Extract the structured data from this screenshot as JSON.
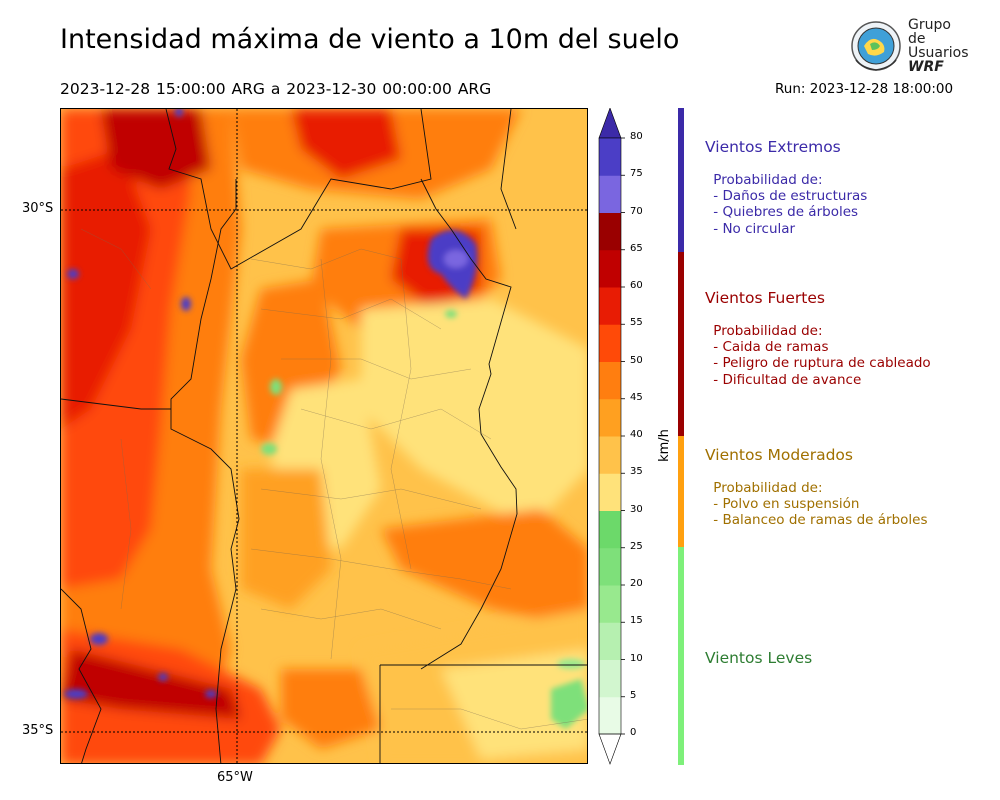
{
  "title": "Intensidad máxima de viento a 10m del suelo",
  "period": "2023-12-28 15:00:00 ARG  a  2023-12-30 00:00:00 ARG",
  "run": "Run: 2023-12-28 18:00:00",
  "logo": {
    "line1": "Grupo de",
    "line2": "Usuarios",
    "line3": "WRF",
    "icon": "globe-seal-icon"
  },
  "map": {
    "lat_labels": [
      "30°S",
      "35°S"
    ],
    "lon_labels": [
      "65°W"
    ]
  },
  "colorbar": {
    "unit": "km/h",
    "ticks": [
      "0",
      "5",
      "10",
      "15",
      "20",
      "25",
      "30",
      "35",
      "40",
      "45",
      "50",
      "55",
      "60",
      "65",
      "70",
      "75",
      "80"
    ],
    "levels": [
      0,
      5,
      10,
      15,
      20,
      25,
      30,
      35,
      40,
      45,
      50,
      55,
      60,
      65,
      70,
      75,
      80
    ],
    "colors": [
      "#e8fbe6",
      "#d2f6cf",
      "#b6f0b0",
      "#98e98e",
      "#7ee07a",
      "#6cd96a",
      "#ffe27a",
      "#ffc24a",
      "#ffa020",
      "#ff7e10",
      "#ff4a08",
      "#e81c04",
      "#c00000",
      "#9a0000",
      "#7a66e0",
      "#4b3ec6",
      "#3c2aa8"
    ]
  },
  "categories": [
    {
      "title": "Vientos Extremos",
      "color": "#3b2aa8",
      "lines": [
        " Probabilidad de:",
        " - Daños de estructuras",
        " - Quiebres de árboles",
        " - No circular"
      ]
    },
    {
      "title": "Vientos Fuertes",
      "color": "#9a0000",
      "lines": [
        " Probabilidad de:",
        " - Caida de ramas",
        " - Peligro de ruptura de cableado",
        " - Dificultad de avance"
      ]
    },
    {
      "title": "Vientos Moderados",
      "color": "#a07000",
      "lines": [
        " Probabilidad de:",
        " - Polvo en suspensión",
        " - Balanceo de ramas de árboles"
      ]
    },
    {
      "title": "Vientos Leves",
      "color": "#2e7d32",
      "lines": []
    }
  ],
  "bar_colors": {
    "extremos": "#3b2aa8",
    "fuertes": "#9a0000",
    "moderados": "#ffa010",
    "leves": "#7ef07a"
  }
}
